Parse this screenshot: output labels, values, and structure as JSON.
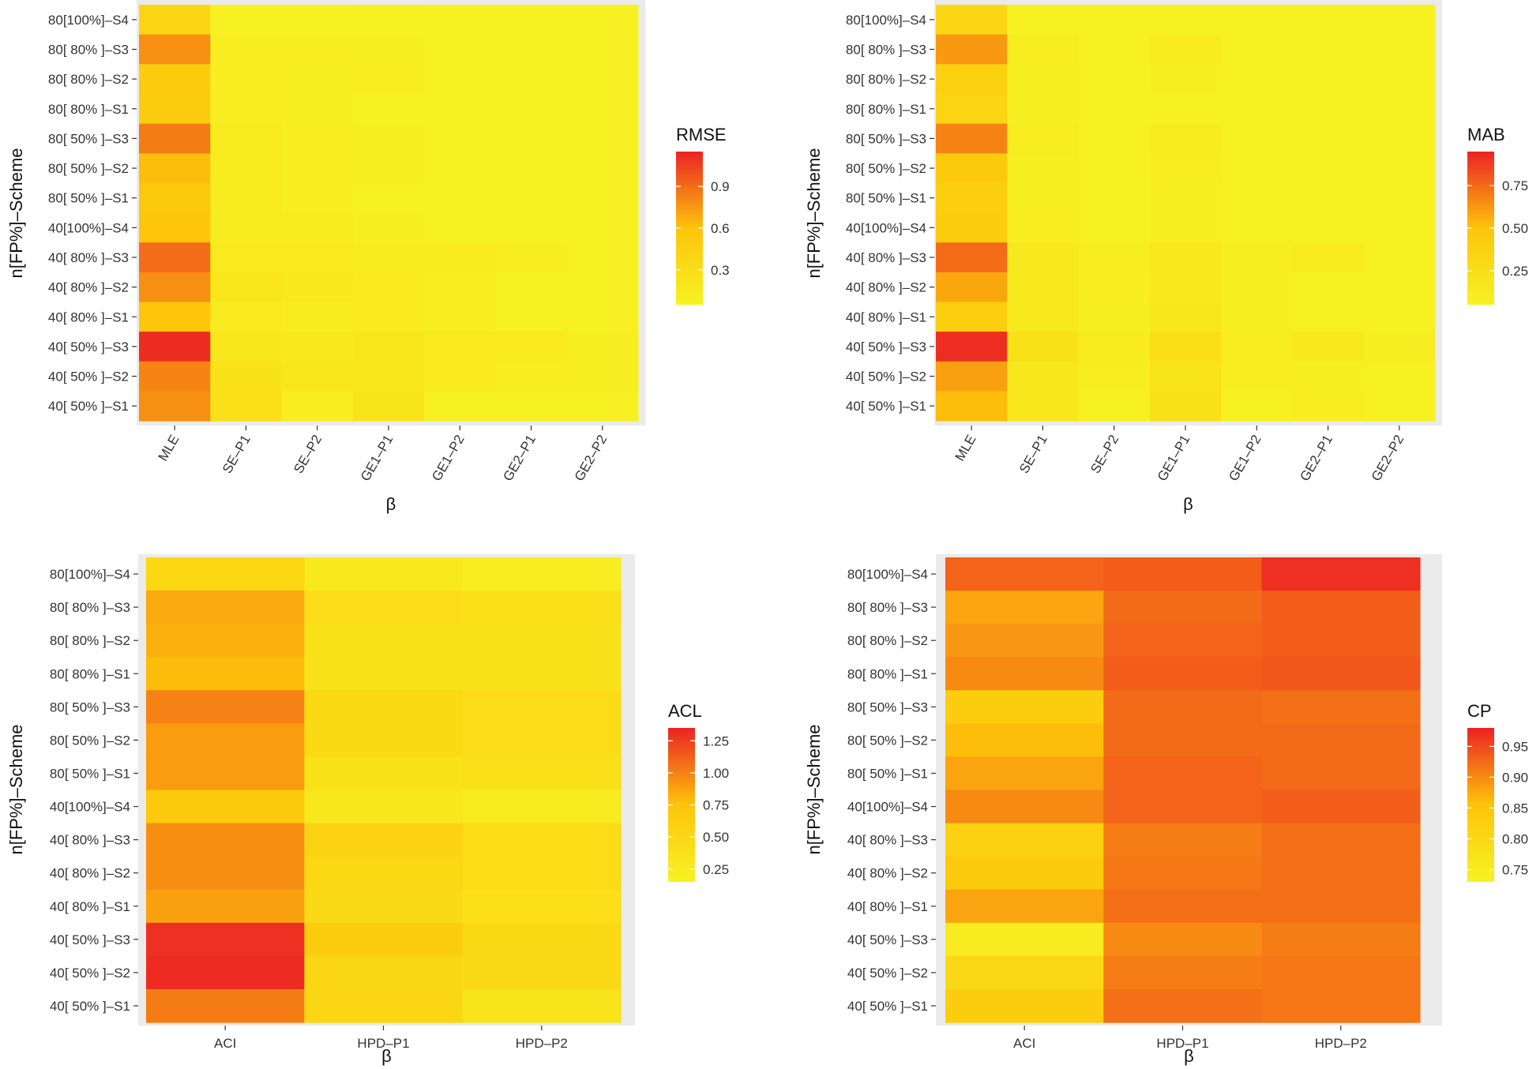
{
  "colors": {
    "low": "#F7F223",
    "mid": "#FDC40A",
    "high": "#EC2323",
    "panel_bg": "#EBEBEB"
  },
  "chart_data": [
    {
      "type": "heatmap",
      "legend_title": "RMSE",
      "xlabel": "β",
      "ylabel": "n[FP%]–Scheme",
      "x_categories": [
        "MLE",
        "SE–P1",
        "SE–P2",
        "GE1–P1",
        "GE1–P2",
        "GE2–P1",
        "GE2–P2"
      ],
      "y_categories": [
        "80[100%]–S4",
        "80[ 80% ]–S3",
        "80[ 80% ]–S2",
        "80[ 80% ]–S1",
        "80[ 50% ]–S3",
        "80[ 50% ]–S2",
        "80[ 50% ]–S1",
        "40[100%]–S4",
        "40[ 80% ]–S3",
        "40[ 80% ]–S2",
        "40[ 80% ]–S1",
        "40[ 50% ]–S3",
        "40[ 50% ]–S2",
        "40[ 50% ]–S1"
      ],
      "values": [
        [
          0.4,
          0.06,
          0.06,
          0.07,
          0.06,
          0.06,
          0.06
        ],
        [
          0.78,
          0.1,
          0.1,
          0.08,
          0.06,
          0.06,
          0.06
        ],
        [
          0.52,
          0.1,
          0.09,
          0.1,
          0.06,
          0.06,
          0.06
        ],
        [
          0.5,
          0.1,
          0.08,
          0.07,
          0.06,
          0.06,
          0.06
        ],
        [
          0.85,
          0.12,
          0.1,
          0.09,
          0.07,
          0.06,
          0.06
        ],
        [
          0.62,
          0.12,
          0.1,
          0.08,
          0.06,
          0.06,
          0.06
        ],
        [
          0.55,
          0.12,
          0.1,
          0.07,
          0.06,
          0.06,
          0.06
        ],
        [
          0.58,
          0.12,
          0.12,
          0.08,
          0.06,
          0.06,
          0.06
        ],
        [
          0.9,
          0.14,
          0.14,
          0.12,
          0.12,
          0.1,
          0.06
        ],
        [
          0.78,
          0.2,
          0.16,
          0.15,
          0.1,
          0.06,
          0.06
        ],
        [
          0.58,
          0.15,
          0.12,
          0.15,
          0.1,
          0.06,
          0.06
        ],
        [
          1.12,
          0.18,
          0.16,
          0.2,
          0.14,
          0.14,
          0.08
        ],
        [
          0.82,
          0.24,
          0.2,
          0.2,
          0.14,
          0.1,
          0.08
        ],
        [
          0.78,
          0.28,
          0.1,
          0.22,
          0.06,
          0.06,
          0.06
        ]
      ],
      "range": [
        0.05,
        1.15
      ],
      "breaks": [
        0.3,
        0.6,
        0.9
      ],
      "break_labels": [
        "0.3",
        "0.6",
        "0.9"
      ]
    },
    {
      "type": "heatmap",
      "legend_title": "MAB",
      "xlabel": "β",
      "ylabel": "n[FP%]–Scheme",
      "x_categories": [
        "MLE",
        "SE–P1",
        "SE–P2",
        "GE1–P1",
        "GE1–P2",
        "GE2–P1",
        "GE2–P2"
      ],
      "y_categories": [
        "80[100%]–S4",
        "80[ 80% ]–S3",
        "80[ 80% ]–S2",
        "80[ 80% ]–S1",
        "80[ 50% ]–S3",
        "80[ 50% ]–S2",
        "80[ 50% ]–S1",
        "40[100%]–S4",
        "40[ 80% ]–S3",
        "40[ 80% ]–S2",
        "40[ 80% ]–S1",
        "40[ 50% ]–S3",
        "40[ 50% ]–S2",
        "40[ 50% ]–S1"
      ],
      "values": [
        [
          0.32,
          0.06,
          0.06,
          0.06,
          0.06,
          0.06,
          0.06
        ],
        [
          0.62,
          0.1,
          0.06,
          0.12,
          0.06,
          0.06,
          0.06
        ],
        [
          0.38,
          0.08,
          0.06,
          0.08,
          0.06,
          0.06,
          0.06
        ],
        [
          0.34,
          0.08,
          0.06,
          0.07,
          0.06,
          0.06,
          0.06
        ],
        [
          0.68,
          0.1,
          0.07,
          0.12,
          0.07,
          0.06,
          0.06
        ],
        [
          0.45,
          0.08,
          0.06,
          0.1,
          0.06,
          0.06,
          0.06
        ],
        [
          0.4,
          0.08,
          0.06,
          0.08,
          0.06,
          0.06,
          0.06
        ],
        [
          0.42,
          0.09,
          0.07,
          0.08,
          0.06,
          0.06,
          0.06
        ],
        [
          0.75,
          0.14,
          0.1,
          0.15,
          0.08,
          0.12,
          0.06
        ],
        [
          0.58,
          0.14,
          0.09,
          0.14,
          0.08,
          0.06,
          0.06
        ],
        [
          0.4,
          0.14,
          0.08,
          0.16,
          0.08,
          0.06,
          0.06
        ],
        [
          0.92,
          0.22,
          0.12,
          0.24,
          0.1,
          0.14,
          0.08
        ],
        [
          0.6,
          0.16,
          0.1,
          0.2,
          0.1,
          0.08,
          0.06
        ],
        [
          0.52,
          0.16,
          0.06,
          0.22,
          0.06,
          0.1,
          0.06
        ]
      ],
      "range": [
        0.05,
        0.95
      ],
      "breaks": [
        0.25,
        0.5,
        0.75
      ],
      "break_labels": [
        "0.25",
        "0.50",
        "0.75"
      ]
    },
    {
      "type": "heatmap",
      "legend_title": "ACL",
      "xlabel": "β",
      "ylabel": "n[FP%]–Scheme",
      "x_categories": [
        "ACI",
        "HPD–P1",
        "HPD–P2"
      ],
      "y_categories": [
        "80[100%]–S4",
        "80[ 80% ]–S3",
        "80[ 80% ]–S2",
        "80[ 80% ]–S1",
        "80[ 50% ]–S3",
        "80[ 50% ]–S2",
        "80[ 50% ]–S1",
        "40[100%]–S4",
        "40[ 80% ]–S3",
        "40[ 80% ]–S2",
        "40[ 80% ]–S1",
        "40[ 50% ]–S3",
        "40[ 50% ]–S2",
        "40[ 50% ]–S1"
      ],
      "values": [
        [
          0.5,
          0.28,
          0.22
        ],
        [
          0.85,
          0.42,
          0.38
        ],
        [
          0.82,
          0.36,
          0.36
        ],
        [
          0.78,
          0.36,
          0.36
        ],
        [
          1.0,
          0.48,
          0.42
        ],
        [
          0.9,
          0.48,
          0.42
        ],
        [
          0.9,
          0.36,
          0.38
        ],
        [
          0.68,
          0.3,
          0.24
        ],
        [
          0.95,
          0.56,
          0.44
        ],
        [
          0.95,
          0.5,
          0.44
        ],
        [
          0.88,
          0.46,
          0.4
        ],
        [
          1.3,
          0.64,
          0.48
        ],
        [
          1.32,
          0.52,
          0.46
        ],
        [
          1.02,
          0.52,
          0.34
        ]
      ],
      "range": [
        0.15,
        1.35
      ],
      "breaks": [
        0.25,
        0.5,
        0.75,
        1.0,
        1.25
      ],
      "break_labels": [
        "0.25",
        "0.50",
        "0.75",
        "1.00",
        "1.25"
      ]
    },
    {
      "type": "heatmap",
      "legend_title": "CP",
      "xlabel": "β",
      "ylabel": "n[FP%]–Scheme",
      "x_categories": [
        "ACI",
        "HPD–P1",
        "HPD–P2"
      ],
      "y_categories": [
        "80[100%]–S4",
        "80[ 80% ]–S3",
        "80[ 80% ]–S2",
        "80[ 80% ]–S1",
        "80[ 50% ]–S3",
        "80[ 50% ]–S2",
        "80[ 50% ]–S1",
        "40[100%]–S4",
        "40[ 80% ]–S3",
        "40[ 80% ]–S2",
        "40[ 80% ]–S1",
        "40[ 50% ]–S3",
        "40[ 50% ]–S2",
        "40[ 50% ]–S1"
      ],
      "values": [
        [
          0.93,
          0.935,
          0.97
        ],
        [
          0.88,
          0.925,
          0.935
        ],
        [
          0.89,
          0.93,
          0.935
        ],
        [
          0.9,
          0.935,
          0.94
        ],
        [
          0.83,
          0.925,
          0.92
        ],
        [
          0.86,
          0.925,
          0.925
        ],
        [
          0.88,
          0.93,
          0.925
        ],
        [
          0.9,
          0.93,
          0.935
        ],
        [
          0.82,
          0.91,
          0.92
        ],
        [
          0.84,
          0.915,
          0.92
        ],
        [
          0.88,
          0.92,
          0.92
        ],
        [
          0.75,
          0.9,
          0.91
        ],
        [
          0.8,
          0.91,
          0.915
        ],
        [
          0.83,
          0.92,
          0.915
        ]
      ],
      "range": [
        0.73,
        0.98
      ],
      "breaks": [
        0.75,
        0.8,
        0.85,
        0.9,
        0.95
      ],
      "break_labels": [
        "0.75",
        "0.80",
        "0.85",
        "0.90",
        "0.95"
      ]
    }
  ]
}
